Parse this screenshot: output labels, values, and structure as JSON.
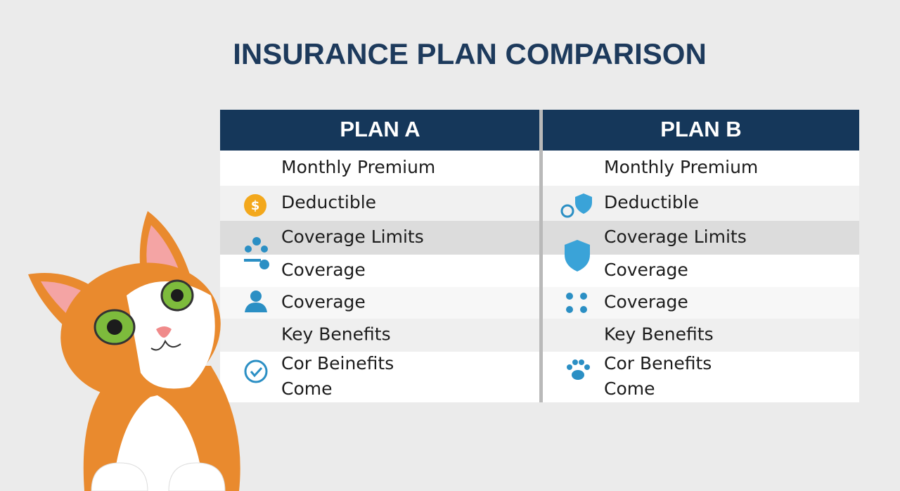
{
  "title": "INSURANCE PLAN COMPARISON",
  "plans": [
    {
      "name": "PLAN A",
      "rows": [
        [
          "Monthly Premium"
        ],
        [
          "Deductible"
        ],
        [
          "Coverage Limits"
        ],
        [
          "Coverage"
        ],
        [
          "Coverage"
        ],
        [
          "Key Benefits"
        ],
        [
          "Cor Beinefits",
          "Come"
        ]
      ]
    },
    {
      "name": "PLAN B",
      "rows": [
        [
          "Monthly Premium"
        ],
        [
          "Deductible"
        ],
        [
          "Coverage Limits"
        ],
        [
          "Coverage"
        ],
        [
          "Coverage"
        ],
        [
          "Key Benefits"
        ],
        [
          "Cor Benefits",
          "Come"
        ]
      ]
    }
  ]
}
